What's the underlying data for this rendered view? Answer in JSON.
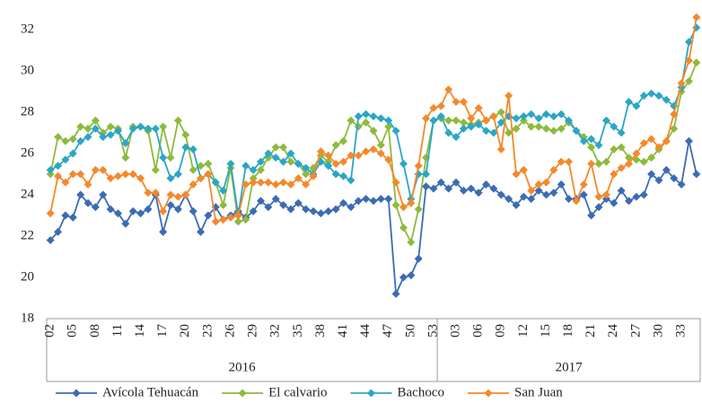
{
  "chart_data": {
    "type": "line",
    "ylim": [
      18,
      33
    ],
    "yticks": [
      18,
      20,
      22,
      24,
      26,
      28,
      30,
      32
    ],
    "categories": [
      "02",
      null,
      null,
      "05",
      null,
      null,
      "08",
      null,
      null,
      "11",
      null,
      null,
      "14",
      null,
      null,
      "17",
      null,
      null,
      "20",
      null,
      null,
      "23",
      null,
      null,
      "26",
      null,
      null,
      "29",
      null,
      null,
      "32",
      null,
      null,
      "35",
      null,
      null,
      "38",
      null,
      null,
      "41",
      null,
      null,
      "44",
      null,
      null,
      "47",
      null,
      null,
      "50",
      null,
      null,
      "53",
      null,
      null,
      "03",
      null,
      null,
      "06",
      null,
      null,
      "09",
      null,
      null,
      "12",
      null,
      null,
      "15",
      null,
      null,
      "18",
      null,
      null,
      "21",
      null,
      null,
      "24",
      null,
      null,
      "27",
      null,
      null,
      "30",
      null,
      null,
      "33",
      null,
      null
    ],
    "groups": [
      {
        "label": "2016",
        "size": 52
      },
      {
        "label": "2017",
        "size": 35
      }
    ],
    "series": [
      {
        "name": "Avícola Tehuacán",
        "color": "#3b6cb3",
        "values": [
          21.8,
          22.2,
          23.0,
          22.9,
          24.0,
          23.6,
          23.4,
          24.0,
          23.3,
          23.1,
          22.6,
          23.2,
          23.1,
          23.3,
          24.0,
          22.2,
          23.5,
          23.3,
          24.0,
          23.2,
          22.2,
          23.0,
          23.4,
          22.8,
          23.0,
          23.2,
          22.9,
          23.2,
          23.7,
          23.4,
          23.8,
          23.5,
          23.3,
          23.6,
          23.3,
          23.2,
          23.1,
          23.2,
          23.3,
          23.6,
          23.4,
          23.7,
          23.8,
          23.7,
          23.8,
          23.8,
          19.2,
          20.0,
          20.1,
          20.9,
          24.4,
          24.3,
          24.6,
          24.3,
          24.6,
          24.2,
          24.3,
          24.1,
          24.5,
          24.3,
          24.0,
          23.8,
          23.5,
          23.9,
          23.8,
          24.2,
          24.0,
          24.1,
          24.5,
          23.8,
          23.8,
          24.0,
          23.0,
          23.4,
          23.8,
          23.6,
          24.2,
          23.7,
          23.9,
          24.0,
          25.0,
          24.7,
          25.2,
          24.8,
          24.5,
          26.6,
          25.0
        ]
      },
      {
        "name": "El calvario",
        "color": "#8dba3c",
        "values": [
          25.0,
          26.8,
          26.6,
          26.7,
          27.3,
          27.2,
          27.6,
          27.0,
          27.3,
          27.2,
          25.8,
          27.3,
          27.3,
          27.1,
          25.2,
          27.3,
          25.8,
          27.6,
          26.9,
          25.2,
          25.4,
          25.5,
          24.6,
          23.5,
          25.3,
          22.7,
          22.8,
          24.8,
          25.2,
          25.8,
          26.3,
          26.3,
          25.6,
          25.5,
          25.0,
          25.3,
          25.9,
          25.6,
          26.4,
          26.6,
          27.6,
          27.3,
          27.5,
          27.1,
          26.4,
          27.3,
          23.5,
          22.4,
          21.7,
          23.3,
          25.8,
          27.6,
          27.7,
          27.6,
          27.6,
          27.5,
          27.4,
          27.5,
          27.6,
          27.8,
          28.0,
          27.0,
          27.2,
          27.6,
          27.3,
          27.3,
          27.2,
          27.1,
          27.2,
          27.5,
          27.1,
          26.8,
          26.3,
          25.5,
          25.6,
          26.2,
          26.3,
          25.8,
          25.7,
          25.6,
          25.8,
          26.2,
          26.6,
          27.2,
          29.0,
          29.5,
          30.4
        ]
      },
      {
        "name": "Bachoco",
        "color": "#2ba6c6",
        "values": [
          25.2,
          25.4,
          25.7,
          26.0,
          26.6,
          26.8,
          27.2,
          26.8,
          26.9,
          27.1,
          26.5,
          27.2,
          27.3,
          27.2,
          27.2,
          25.8,
          24.8,
          25.0,
          26.3,
          26.2,
          24.8,
          25.0,
          24.6,
          24.2,
          25.5,
          23.0,
          25.4,
          25.2,
          25.6,
          26.0,
          25.8,
          25.6,
          26.0,
          25.5,
          25.3,
          25.0,
          25.6,
          25.4,
          25.0,
          24.9,
          24.7,
          27.8,
          27.9,
          27.8,
          27.7,
          27.6,
          27.1,
          25.5,
          23.8,
          25.0,
          25.0,
          27.6,
          27.8,
          27.0,
          26.8,
          27.2,
          27.3,
          27.4,
          27.1,
          27.0,
          27.5,
          27.8,
          27.7,
          27.8,
          27.9,
          27.7,
          27.9,
          27.8,
          27.9,
          27.6,
          27.1,
          26.6,
          26.7,
          26.4,
          27.6,
          27.3,
          27.0,
          28.5,
          28.3,
          28.8,
          28.9,
          28.8,
          28.6,
          28.3,
          29.2,
          31.4,
          32.1
        ]
      },
      {
        "name": "San Juan",
        "color": "#f5882a",
        "values": [
          23.1,
          24.9,
          24.6,
          25.0,
          25.0,
          24.5,
          25.2,
          25.2,
          24.8,
          24.9,
          25.0,
          25.0,
          24.8,
          24.1,
          24.1,
          23.2,
          24.0,
          23.9,
          24.0,
          24.5,
          24.8,
          25.0,
          22.7,
          22.8,
          22.9,
          23.0,
          24.5,
          24.6,
          24.6,
          24.6,
          24.5,
          24.6,
          24.5,
          24.8,
          24.5,
          24.9,
          26.1,
          25.9,
          25.5,
          25.6,
          25.9,
          25.9,
          26.1,
          26.2,
          26.0,
          25.7,
          24.6,
          23.4,
          23.6,
          25.4,
          27.7,
          28.2,
          28.3,
          29.1,
          28.5,
          28.5,
          27.7,
          28.2,
          27.6,
          27.8,
          26.2,
          28.8,
          25.0,
          25.2,
          24.2,
          24.5,
          24.6,
          25.2,
          25.6,
          25.6,
          23.7,
          24.5,
          25.5,
          23.9,
          24.0,
          25.0,
          25.3,
          25.5,
          26.0,
          26.5,
          26.7,
          26.3,
          26.6,
          27.9,
          29.4,
          30.5,
          32.6
        ]
      }
    ],
    "grid": false,
    "legend": "bottom"
  }
}
